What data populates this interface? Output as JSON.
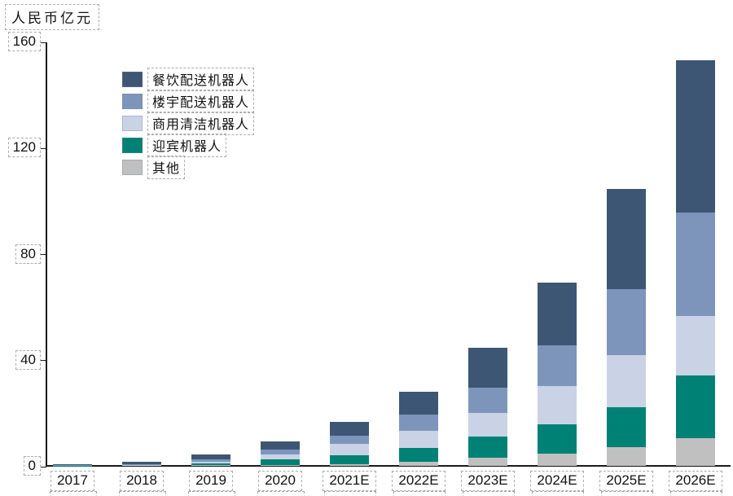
{
  "chart_data": {
    "type": "bar",
    "stacked": true,
    "title": "",
    "unit_label": "人民币亿元",
    "xlabel": "",
    "ylabel": "人民币亿元",
    "ylim": [
      0,
      160
    ],
    "y_ticks": [
      0,
      40,
      80,
      120,
      160
    ],
    "grid": false,
    "legend_position": "upper-left-inside",
    "categories": [
      "2017",
      "2018",
      "2019",
      "2020",
      "2021E",
      "2022E",
      "2023E",
      "2024E",
      "2025E",
      "2026E"
    ],
    "series_order": "top-to-bottom-in-stack",
    "series": [
      {
        "name": "餐饮配送机器人",
        "color": "#3D5674",
        "values": [
          0.3,
          0.8,
          1.8,
          3.1,
          5.2,
          8.6,
          15.0,
          23.7,
          37.8,
          57.5
        ]
      },
      {
        "name": "楼宇配送机器人",
        "color": "#7E95BB",
        "values": [
          0.1,
          0.3,
          1.2,
          1.8,
          3.1,
          6.1,
          9.5,
          15.4,
          24.9,
          39.0
        ]
      },
      {
        "name": "商用清洁机器人",
        "color": "#C9D3E5",
        "values": [
          0.1,
          0.2,
          0.6,
          1.8,
          4.3,
          6.5,
          8.9,
          14.4,
          19.7,
          22.5
        ]
      },
      {
        "name": "迎宾机器人",
        "color": "#008175",
        "values": [
          0.1,
          0.2,
          0.6,
          2.2,
          3.4,
          5.2,
          8.0,
          11.1,
          15.0,
          23.5
        ]
      },
      {
        "name": "其他",
        "color": "#C0C0C0",
        "values": [
          0.0,
          0.0,
          0.2,
          0.3,
          0.6,
          1.6,
          3.1,
          4.6,
          7.1,
          10.5
        ]
      }
    ],
    "totals": [
      0.6,
      1.5,
      4.4,
      9.2,
      16.6,
      28.0,
      44.5,
      69.2,
      104.5,
      153.0
    ],
    "axis_color": "#1a1a1a"
  }
}
